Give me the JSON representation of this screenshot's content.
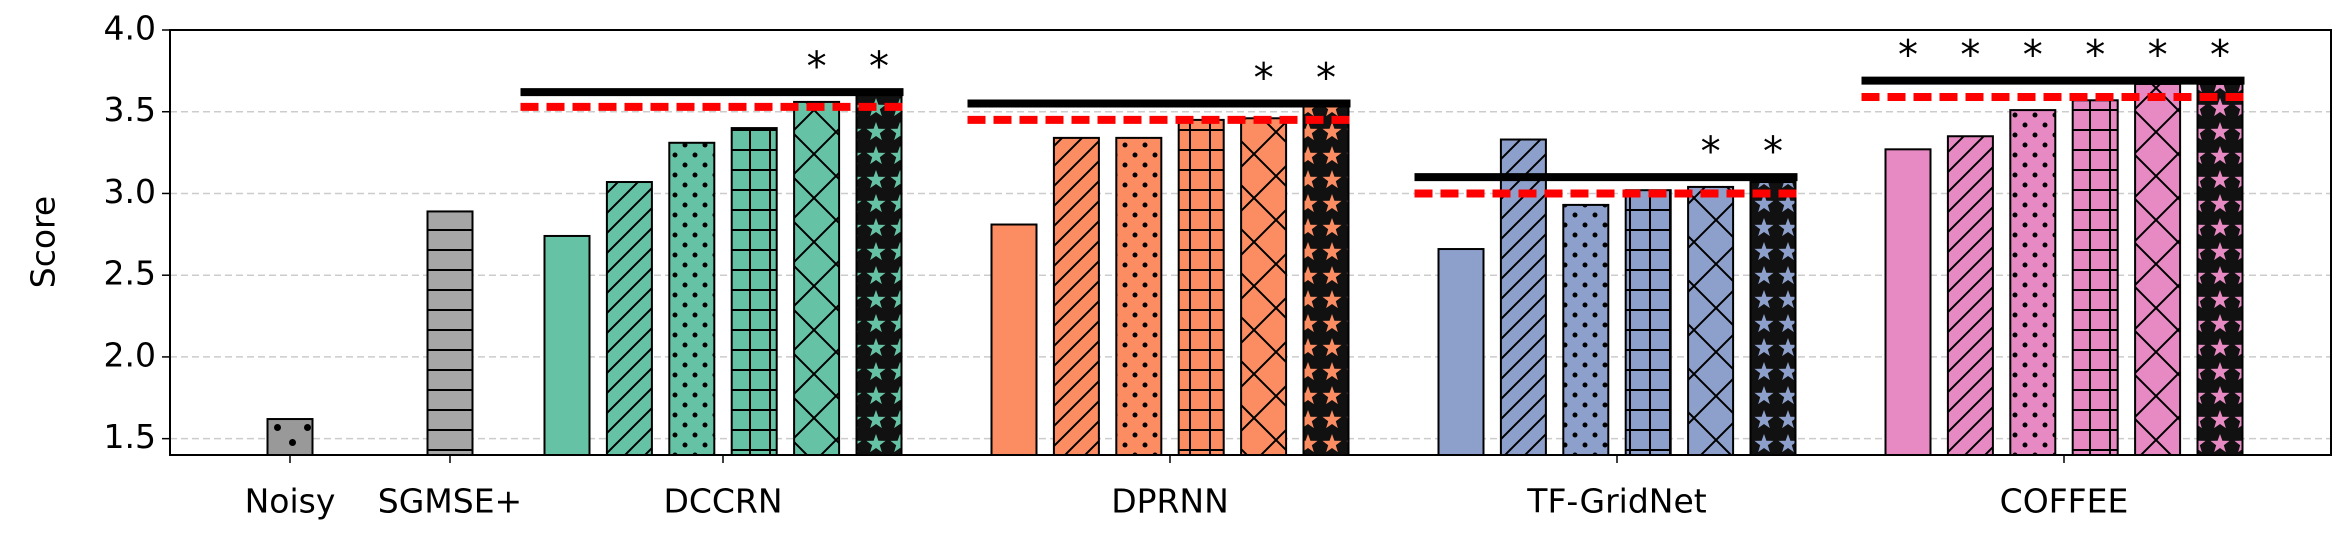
{
  "chart_data": {
    "type": "grouped-bar",
    "ylabel": "Score",
    "ylim": [
      1.4,
      4.0
    ],
    "yticks": [
      1.5,
      {
        "value": 2,
        "label": "2.0"
      },
      2.5,
      {
        "value": 3,
        "label": "3.0"
      },
      3.5,
      {
        "value": 4,
        "label": "4.0"
      }
    ],
    "grid": true,
    "groups": [
      {
        "name": "Noisy",
        "color": "#999999",
        "values": [
          1.62
        ],
        "hatches": [
          "dots"
        ]
      },
      {
        "name": "SGMSE+",
        "color": "#a6a6a6",
        "values": [
          2.89
        ],
        "hatches": [
          "hlines"
        ]
      },
      {
        "name": "DCCRN",
        "color": "#66c2a5",
        "values": [
          2.74,
          3.07,
          3.31,
          3.4,
          3.56,
          3.61
        ],
        "hatches": [
          null,
          "diagonal",
          "dots",
          "grid",
          "cross",
          "stars"
        ],
        "line_solid": 3.62,
        "line_dashed": 3.53,
        "stars": [
          null,
          null,
          null,
          null,
          "*",
          "*"
        ]
      },
      {
        "name": "DPRNN",
        "color": "#fc8d62",
        "values": [
          2.81,
          3.34,
          3.34,
          3.45,
          3.46,
          3.54
        ],
        "hatches": [
          null,
          "diagonal",
          "dots",
          "grid",
          "cross",
          "stars"
        ],
        "line_solid": 3.55,
        "line_dashed": 3.45,
        "stars": [
          null,
          null,
          null,
          null,
          "*",
          "*"
        ]
      },
      {
        "name": "TF-GridNet",
        "color": "#8da0cb",
        "values": [
          2.66,
          3.33,
          2.93,
          3.02,
          3.04,
          3.07
        ],
        "hatches": [
          null,
          "diagonal",
          "dots",
          "grid",
          "cross",
          "stars"
        ],
        "line_solid": 3.1,
        "line_dashed": 3.0,
        "stars": [
          null,
          null,
          null,
          null,
          "*",
          "*"
        ]
      },
      {
        "name": "COFFEE",
        "color": "#e78ac3",
        "values": [
          3.27,
          3.35,
          3.51,
          3.57,
          3.67,
          3.67
        ],
        "hatches": [
          null,
          "diagonal",
          "dots",
          "grid",
          "cross",
          "stars"
        ],
        "line_solid": 3.69,
        "line_dashed": 3.59,
        "stars": [
          "*",
          "*",
          "*",
          "*",
          "*",
          "*"
        ]
      }
    ]
  }
}
